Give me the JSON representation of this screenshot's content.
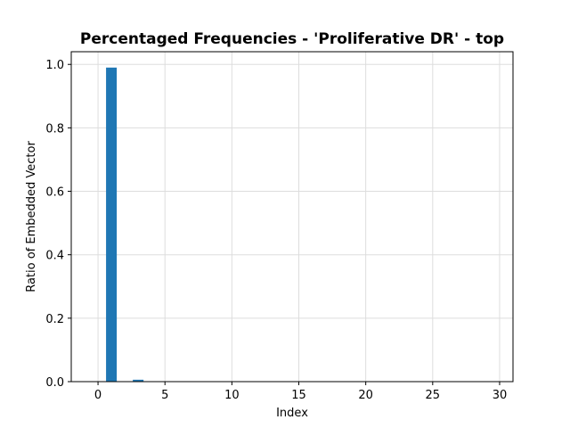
{
  "chart_data": {
    "type": "bar",
    "title": "Percentaged Frequencies - 'Proliferative DR' - top",
    "xlabel": "Index",
    "ylabel": "Ratio of Embedded Vector",
    "x": [
      0,
      1,
      2,
      3,
      4,
      5,
      6,
      7,
      8,
      9,
      10,
      11,
      12,
      13,
      14,
      15,
      16,
      17,
      18,
      19,
      20,
      21,
      22,
      23,
      24,
      25,
      26,
      27,
      28,
      29
    ],
    "values": [
      0,
      0.99,
      0,
      0.006,
      0,
      0,
      0,
      0,
      0,
      0,
      0,
      0,
      0,
      0,
      0,
      0,
      0,
      0,
      0,
      0,
      0,
      0,
      0,
      0,
      0,
      0,
      0,
      0,
      0,
      0
    ],
    "xlim": [
      -2,
      31
    ],
    "ylim": [
      0,
      1.04
    ],
    "xticks": [
      0,
      5,
      10,
      15,
      20,
      25,
      30
    ],
    "yticks": [
      0.0,
      0.2,
      0.4,
      0.6,
      0.8,
      1.0
    ],
    "xtick_labels": [
      "0",
      "5",
      "10",
      "15",
      "20",
      "25",
      "30"
    ],
    "ytick_labels": [
      "0.0",
      "0.2",
      "0.4",
      "0.6",
      "0.8",
      "1.0"
    ],
    "grid": true,
    "bar_color": "#1f77b4",
    "grid_color": "#dddddd"
  }
}
